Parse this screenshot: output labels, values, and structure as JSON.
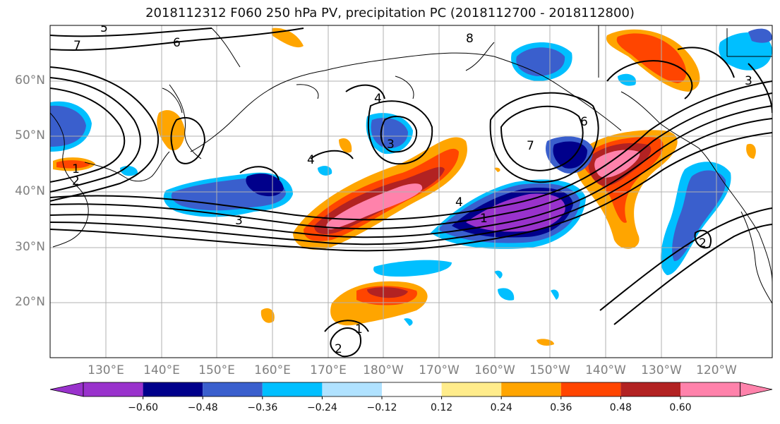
{
  "title": "2018112312 F060 250 hPa PV, precipitation PC (2018112700 - 2018112800)",
  "map": {
    "lat_labels": [
      "60°N",
      "50°N",
      "40°N",
      "30°N",
      "20°N"
    ],
    "lon_labels": [
      "130°E",
      "140°E",
      "150°E",
      "160°E",
      "170°E",
      "180°W",
      "170°W",
      "160°W",
      "150°W",
      "140°W",
      "130°W",
      "120°W"
    ],
    "contour_labels": [
      "7",
      "6",
      "5",
      "1",
      "2",
      "3",
      "4",
      "3",
      "4",
      "7",
      "1",
      "2",
      "6",
      "8",
      "2",
      "1",
      "3",
      "4"
    ],
    "colors": {
      "grid": "#b0b0b0",
      "coast": "#000000",
      "contour": "#000000"
    }
  },
  "colorbar": {
    "ticks": [
      "−0.60",
      "−0.48",
      "−0.36",
      "−0.24",
      "−0.12",
      "0.12",
      "0.24",
      "0.36",
      "0.48",
      "0.60"
    ],
    "colors": [
      "#9932cc",
      "#00008b",
      "#3a5fcd",
      "#00bfff",
      "#b0e2ff",
      "#ffffff",
      "#ffec8b",
      "#ffa500",
      "#ff4500",
      "#b22222",
      "#ff82ab"
    ]
  }
}
